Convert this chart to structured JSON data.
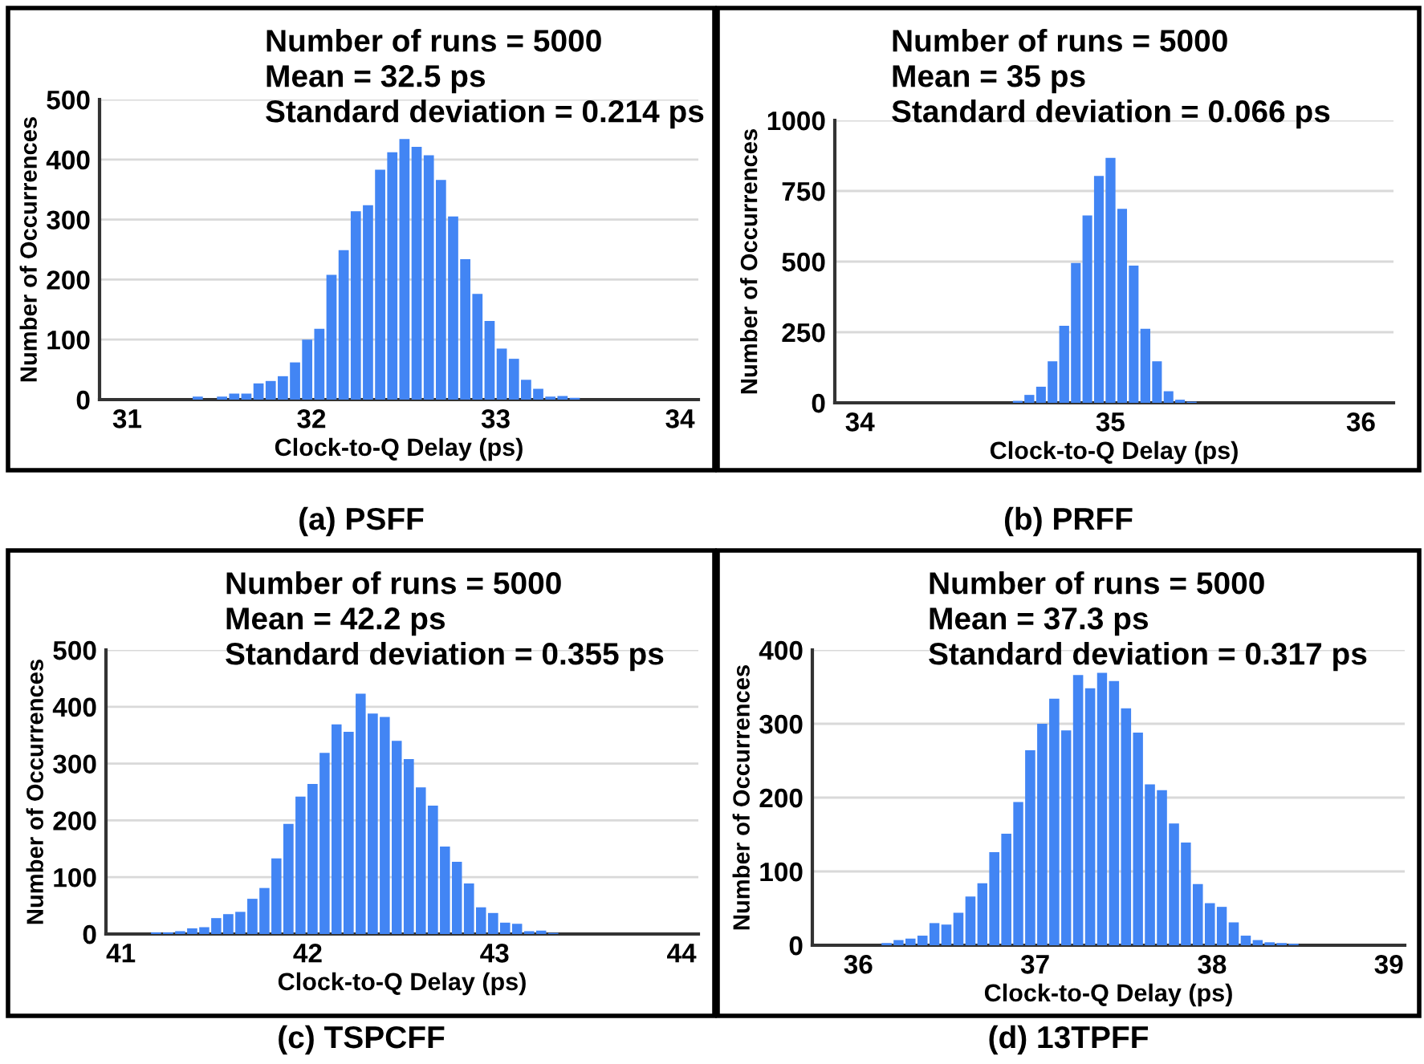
{
  "chart_data": [
    {
      "type": "histogram",
      "title": "(a) PSFF",
      "xlabel": "Clock-to-Q Delay (ps)",
      "ylabel": "Number of Occurrences",
      "color": "#4285f4",
      "annotations": [
        "Number of runs = 5000",
        "Mean = 32.5 ps",
        "Standard deviation = 0.214 ps"
      ],
      "bins": [
        31.35,
        31.416,
        31.482,
        31.548,
        31.614,
        31.68,
        31.746,
        31.812,
        31.878,
        31.944,
        32.01,
        32.076,
        32.142,
        32.208,
        32.274,
        32.34,
        32.406,
        32.472,
        32.538,
        32.604,
        32.67,
        32.736,
        32.802,
        32.868,
        32.934,
        33.0,
        33.066,
        33.132,
        33.198,
        33.264,
        33.33,
        33.396,
        33.462
      ],
      "values": [
        5,
        0,
        5,
        10,
        10,
        27,
        31,
        39,
        62,
        100,
        118,
        208,
        249,
        314,
        324,
        383,
        412,
        434,
        421,
        407,
        366,
        305,
        234,
        176,
        131,
        85,
        68,
        33,
        18,
        5,
        6,
        3
      ],
      "xlim": [
        30.85,
        34.1
      ],
      "xticks": [
        31,
        32,
        33,
        34
      ],
      "ylim": [
        0,
        500
      ],
      "yticks": [
        0,
        100,
        200,
        300,
        400,
        500
      ],
      "grid": "y"
    },
    {
      "type": "histogram",
      "title": "(b) PRFF",
      "xlabel": "Clock-to-Q Delay (ps)",
      "ylabel": "Number of Occurrences",
      "color": "#4285f4",
      "annotations": [
        "Number of runs = 5000",
        "Mean = 35 ps",
        "Standard deviation = 0.066 ps"
      ],
      "bins": [
        34.607,
        34.653,
        34.7,
        34.746,
        34.792,
        34.839,
        34.885,
        34.931,
        34.977,
        35.024,
        35.07,
        35.116,
        35.163,
        35.209,
        35.255,
        35.301,
        35.348
      ],
      "values": [
        7,
        28,
        57,
        147,
        273,
        495,
        663,
        803,
        867,
        687,
        486,
        262,
        147,
        41,
        11,
        4
      ],
      "xlim": [
        33.9,
        36.13
      ],
      "xticks": [
        34,
        35,
        36
      ],
      "ylim": [
        0,
        1000
      ],
      "yticks": [
        0,
        250,
        500,
        750,
        1000
      ],
      "grid": "y"
    },
    {
      "type": "histogram",
      "title": "(c) TSPCFF",
      "xlabel": "Clock-to-Q Delay (ps)",
      "ylabel": "Number of Occurrences",
      "color": "#4285f4",
      "annotations": [
        "Number of runs = 5000",
        "Mean = 42.2 ps",
        "Standard deviation = 0.355 ps"
      ],
      "bins": [
        41.156,
        41.22,
        41.285,
        41.349,
        41.414,
        41.478,
        41.542,
        41.607,
        41.671,
        41.736,
        41.8,
        41.864,
        41.929,
        41.993,
        42.058,
        42.122,
        42.186,
        42.251,
        42.315,
        42.38,
        42.444,
        42.508,
        42.573,
        42.637,
        42.702,
        42.766,
        42.83,
        42.895,
        42.959,
        43.024,
        43.088,
        43.152,
        43.217,
        43.281,
        43.346
      ],
      "values": [
        3,
        3,
        5,
        10,
        12,
        28,
        35,
        39,
        62,
        81,
        133,
        194,
        242,
        264,
        319,
        369,
        356,
        423,
        388,
        382,
        340,
        308,
        258,
        226,
        154,
        127,
        89,
        47,
        37,
        20,
        18,
        5,
        6,
        2
      ],
      "xlim": [
        40.92,
        44.09
      ],
      "xticks": [
        41,
        42,
        43,
        44
      ],
      "ylim": [
        0,
        500
      ],
      "yticks": [
        0,
        100,
        200,
        300,
        400,
        500
      ],
      "grid": "y"
    },
    {
      "type": "histogram",
      "title": "(d) 13TPFF",
      "xlabel": "Clock-to-Q Delay (ps)",
      "ylabel": "Number of Occurrences",
      "color": "#4285f4",
      "annotations": [
        "Number of runs = 5000",
        "Mean = 37.3 ps",
        "Standard deviation = 0.317 ps"
      ],
      "bins": [
        36.126,
        36.194,
        36.261,
        36.329,
        36.397,
        36.464,
        36.532,
        36.6,
        36.668,
        36.735,
        36.803,
        36.871,
        36.938,
        37.006,
        37.074,
        37.142,
        37.209,
        37.277,
        37.345,
        37.412,
        37.48,
        37.548,
        37.615,
        37.683,
        37.751,
        37.819,
        37.886,
        37.954,
        38.022,
        38.089,
        38.157,
        38.225,
        38.292,
        38.36,
        38.428,
        38.495
      ],
      "values": [
        3,
        7,
        9,
        13,
        30,
        28,
        44,
        66,
        84,
        126,
        151,
        194,
        264,
        300,
        334,
        291,
        366,
        348,
        369,
        358,
        321,
        288,
        218,
        210,
        165,
        139,
        83,
        57,
        52,
        31,
        13,
        7,
        4,
        3,
        2
      ],
      "xlim": [
        35.74,
        39.09
      ],
      "xticks": [
        36,
        37,
        38,
        39
      ],
      "ylim": [
        0,
        400
      ],
      "yticks": [
        0,
        100,
        200,
        300,
        400
      ],
      "grid": "y"
    }
  ]
}
